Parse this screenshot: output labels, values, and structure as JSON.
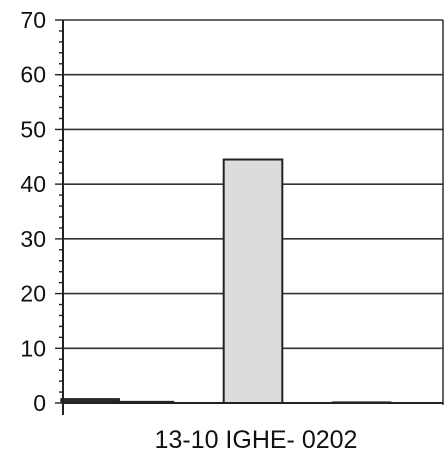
{
  "chart_data": {
    "type": "bar",
    "categories": [
      "",
      "",
      "",
      "",
      "",
      "",
      ""
    ],
    "values": [
      0.8,
      0.3,
      0,
      44.5,
      0,
      0.2,
      0
    ],
    "ylim": [
      0,
      70
    ],
    "yticks": [
      0,
      10,
      20,
      30,
      40,
      50,
      60,
      70
    ],
    "xlabel": "13-10 IGHE- 0202",
    "ylabel": "",
    "title": "",
    "grid": true,
    "legend": "none",
    "colors": {
      "bar_fill": "#dcdcdc",
      "small_bar_fill": "#2a2a2a",
      "bar_stroke": "#222222",
      "grid": "#333333",
      "axis": "#222222"
    }
  }
}
